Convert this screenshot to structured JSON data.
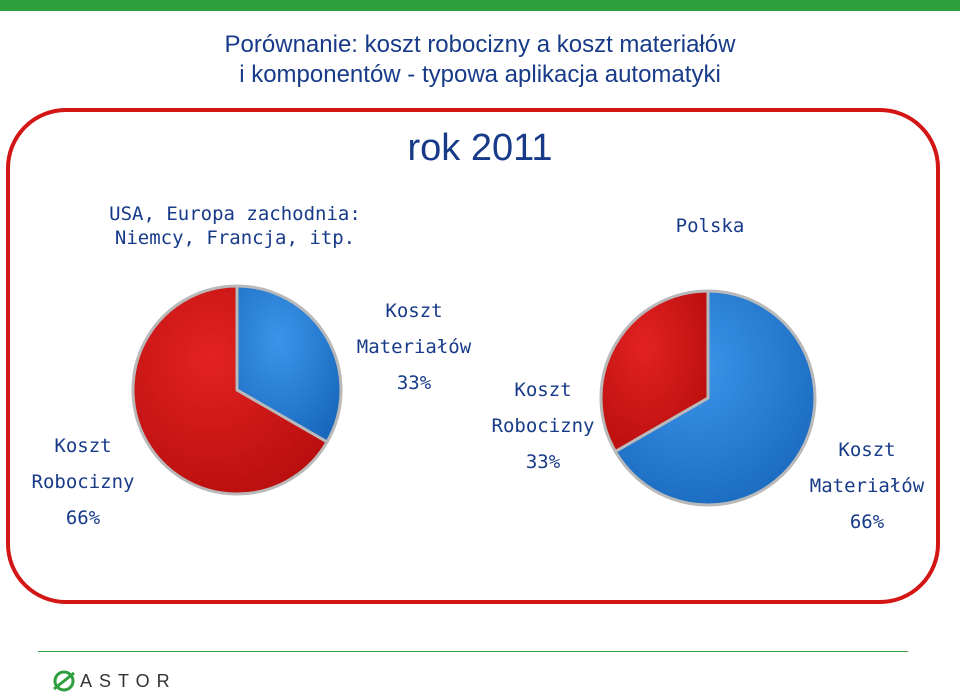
{
  "header": {
    "title_line1": "Porównanie: koszt robocizny a koszt materiałów",
    "title_line2": "i komponentów - typowa aplikacja automatyki",
    "year": "rok 2011"
  },
  "regions": {
    "left_line1": "USA, Europa zachodnia:",
    "left_line2": "Niemcy, Francja, itp.",
    "right": "Polska"
  },
  "colors": {
    "accent_green": "#2e9f3d",
    "title_blue": "#173b88",
    "labor_red": "#d31515",
    "materials_blue": "#1f78d1"
  },
  "chart_data": [
    {
      "type": "pie",
      "group": "USA, Europa zachodnia: Niemcy, Francja, itp.",
      "slices": [
        {
          "label": "Koszt Materiałów",
          "value": 33,
          "color": "#1f78d1",
          "line1": "Koszt",
          "line2": "Materiałów",
          "pct": "33%"
        },
        {
          "label": "Koszt Robocizny",
          "value": 66,
          "color": "#d31515",
          "line1": "Koszt",
          "line2": "Robocizny",
          "pct": "66%"
        }
      ]
    },
    {
      "type": "pie",
      "group": "Polska",
      "slices": [
        {
          "label": "Koszt Materiałów",
          "value": 66,
          "color": "#1f78d1",
          "line1": "Koszt",
          "line2": "Materiałów",
          "pct": "66%"
        },
        {
          "label": "Koszt Robocizny",
          "value": 33,
          "color": "#d31515",
          "line1": "Koszt",
          "line2": "Robocizny",
          "pct": "33%"
        }
      ]
    }
  ],
  "footer": {
    "logo_text": "ASTOR"
  }
}
